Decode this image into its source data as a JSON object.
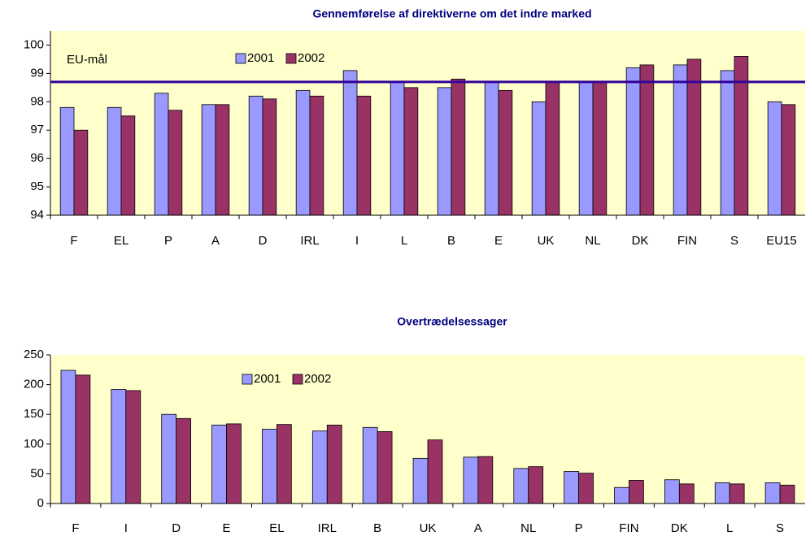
{
  "chart_data": [
    {
      "type": "bar",
      "title": "Gennemførelse af direktiverne om det indre marked",
      "categories": [
        "F",
        "EL",
        "P",
        "A",
        "D",
        "IRL",
        "I",
        "L",
        "B",
        "E",
        "UK",
        "NL",
        "DK",
        "FIN",
        "S",
        "EU15"
      ],
      "series": [
        {
          "name": "2001",
          "color": "#9999ff",
          "values": [
            97.8,
            97.8,
            98.3,
            97.9,
            98.2,
            98.4,
            99.1,
            98.7,
            98.5,
            98.7,
            98.0,
            98.7,
            99.2,
            99.3,
            99.1,
            98.0
          ]
        },
        {
          "name": "2002",
          "color": "#993366",
          "values": [
            97.0,
            97.5,
            97.7,
            97.9,
            98.1,
            98.2,
            98.2,
            98.5,
            98.8,
            98.4,
            98.7,
            98.7,
            99.3,
            99.5,
            99.6,
            97.9
          ]
        }
      ],
      "ylim": [
        94,
        100.5
      ],
      "yticks": [
        94,
        95,
        96,
        97,
        98,
        99,
        100
      ],
      "target": {
        "label": "EU-mål",
        "value": 98.7,
        "color": "#330099"
      },
      "background": "#ffffcc",
      "grid": false
    },
    {
      "type": "bar",
      "title": "Overtrædelsessager",
      "categories": [
        "F",
        "I",
        "D",
        "E",
        "EL",
        "IRL",
        "B",
        "UK",
        "A",
        "NL",
        "P",
        "FIN",
        "DK",
        "L",
        "S"
      ],
      "series": [
        {
          "name": "2001",
          "color": "#9999ff",
          "values": [
            224,
            192,
            150,
            132,
            125,
            122,
            128,
            76,
            78,
            59,
            54,
            27,
            40,
            35,
            35
          ]
        },
        {
          "name": "2002",
          "color": "#993366",
          "values": [
            216,
            190,
            143,
            134,
            133,
            132,
            121,
            107,
            79,
            62,
            51,
            39,
            33,
            33,
            31
          ]
        }
      ],
      "ylim": [
        0,
        250
      ],
      "yticks": [
        0,
        50,
        100,
        150,
        200,
        250
      ],
      "background": "#ffffcc",
      "grid": false
    }
  ]
}
